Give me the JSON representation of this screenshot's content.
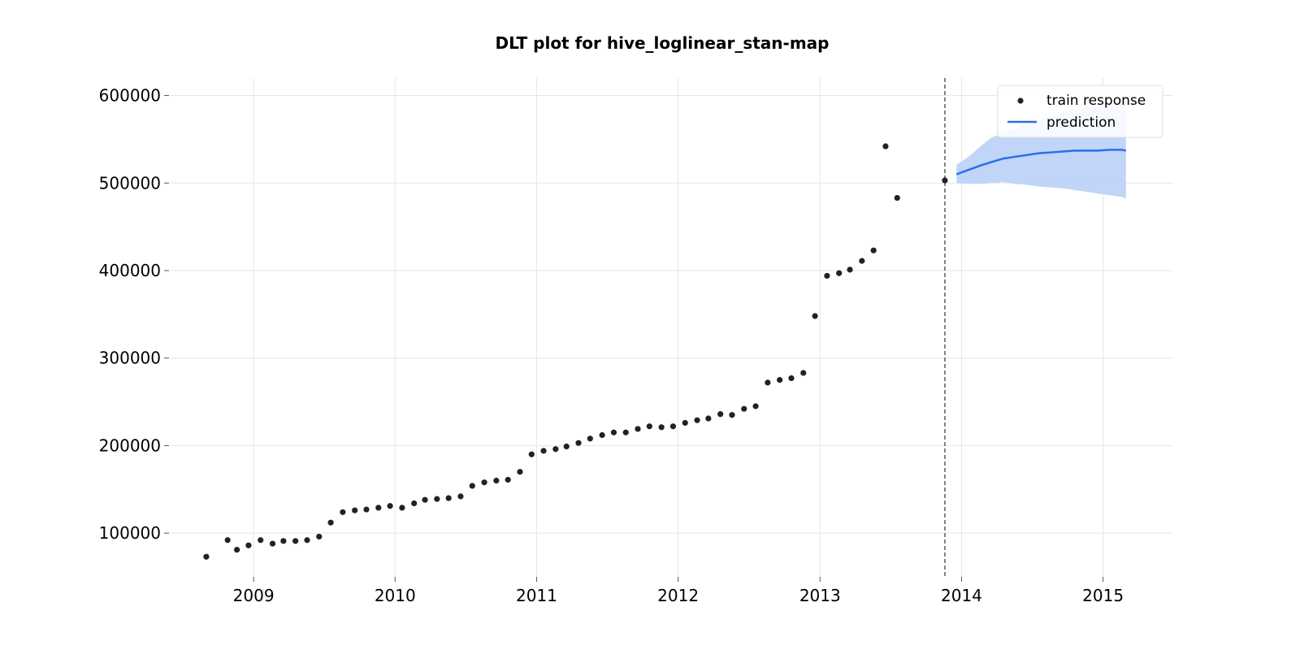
{
  "chart_data": {
    "type": "scatter",
    "title": "DLT plot for hive_loglinear_stan-map",
    "xlabel": "",
    "ylabel": "",
    "xlim": [
      "2008-06-01",
      "2015-07-01"
    ],
    "ylim": [
      50000,
      620000
    ],
    "x_ticks": [
      "2009",
      "2010",
      "2011",
      "2012",
      "2013",
      "2014",
      "2015"
    ],
    "y_ticks": [
      "100000",
      "200000",
      "300000",
      "400000",
      "500000",
      "600000"
    ],
    "grid": true,
    "legend_position": "top-right",
    "split_date": "2013-11-19",
    "colors": {
      "train": "#222222",
      "prediction": "#2a6fe8",
      "band": "#bdd3f8",
      "split_line": "#666666",
      "grid": "#e6e6e6"
    },
    "series": [
      {
        "name": "train response",
        "kind": "scatter",
        "points": [
          [
            "2008-09-01",
            73000
          ],
          [
            "2008-10-26",
            92000
          ],
          [
            "2008-11-19",
            81000
          ],
          [
            "2008-12-19",
            86000
          ],
          [
            "2009-01-19",
            92000
          ],
          [
            "2009-02-19",
            88000
          ],
          [
            "2009-03-19",
            91000
          ],
          [
            "2009-04-19",
            91000
          ],
          [
            "2009-05-19",
            92000
          ],
          [
            "2009-06-19",
            96000
          ],
          [
            "2009-07-19",
            112000
          ],
          [
            "2009-08-19",
            124000
          ],
          [
            "2009-09-19",
            126000
          ],
          [
            "2009-10-19",
            127000
          ],
          [
            "2009-11-19",
            129000
          ],
          [
            "2009-12-19",
            131000
          ],
          [
            "2010-01-19",
            129000
          ],
          [
            "2010-02-19",
            134000
          ],
          [
            "2010-03-19",
            138000
          ],
          [
            "2010-04-19",
            139000
          ],
          [
            "2010-05-19",
            140000
          ],
          [
            "2010-06-19",
            142000
          ],
          [
            "2010-07-19",
            154000
          ],
          [
            "2010-08-19",
            158000
          ],
          [
            "2010-09-19",
            160000
          ],
          [
            "2010-10-19",
            161000
          ],
          [
            "2010-11-19",
            170000
          ],
          [
            "2010-12-19",
            190000
          ],
          [
            "2011-01-19",
            194000
          ],
          [
            "2011-02-19",
            196000
          ],
          [
            "2011-03-19",
            199000
          ],
          [
            "2011-04-19",
            203000
          ],
          [
            "2011-05-19",
            208000
          ],
          [
            "2011-06-19",
            212000
          ],
          [
            "2011-07-19",
            215000
          ],
          [
            "2011-08-19",
            215000
          ],
          [
            "2011-09-19",
            219000
          ],
          [
            "2011-10-19",
            222000
          ],
          [
            "2011-11-19",
            221000
          ],
          [
            "2011-12-19",
            222000
          ],
          [
            "2012-01-19",
            226000
          ],
          [
            "2012-02-19",
            229000
          ],
          [
            "2012-03-19",
            231000
          ],
          [
            "2012-04-19",
            236000
          ],
          [
            "2012-05-19",
            235000
          ],
          [
            "2012-06-19",
            242000
          ],
          [
            "2012-07-19",
            245000
          ],
          [
            "2012-08-19",
            272000
          ],
          [
            "2012-09-19",
            275000
          ],
          [
            "2012-10-19",
            277000
          ],
          [
            "2012-11-19",
            283000
          ],
          [
            "2012-12-19",
            348000
          ],
          [
            "2013-01-19",
            394000
          ],
          [
            "2013-02-19",
            397000
          ],
          [
            "2013-03-19",
            401000
          ],
          [
            "2013-04-19",
            411000
          ],
          [
            "2013-05-19",
            423000
          ],
          [
            "2013-06-19",
            542000
          ],
          [
            "2013-07-19",
            483000
          ],
          [
            "2013-11-19",
            503000
          ]
        ]
      },
      {
        "name": "prediction",
        "kind": "line",
        "points": [
          [
            "2013-12-19",
            510000
          ],
          [
            "2014-01-19",
            515000
          ],
          [
            "2014-02-19",
            520000
          ],
          [
            "2014-03-19",
            524000
          ],
          [
            "2014-04-19",
            528000
          ],
          [
            "2014-05-19",
            530000
          ],
          [
            "2014-06-19",
            532000
          ],
          [
            "2014-07-19",
            534000
          ],
          [
            "2014-08-19",
            535000
          ],
          [
            "2014-09-19",
            536000
          ],
          [
            "2014-10-19",
            537000
          ],
          [
            "2014-11-19",
            537000
          ],
          [
            "2014-12-19",
            537000
          ],
          [
            "2015-01-19",
            538000
          ],
          [
            "2015-02-19",
            538000
          ],
          [
            "2015-03-01",
            537000
          ]
        ],
        "band_upper": [
          521000,
          530000,
          542000,
          552000,
          557000,
          562000,
          568000,
          572000,
          577000,
          580000,
          584000,
          586000,
          589000,
          591000,
          593000,
          594000
        ],
        "band_lower": [
          500000,
          499000,
          499000,
          500000,
          501000,
          499000,
          498000,
          496000,
          495000,
          494000,
          492000,
          490000,
          488000,
          486000,
          484000,
          482000
        ]
      }
    ]
  }
}
